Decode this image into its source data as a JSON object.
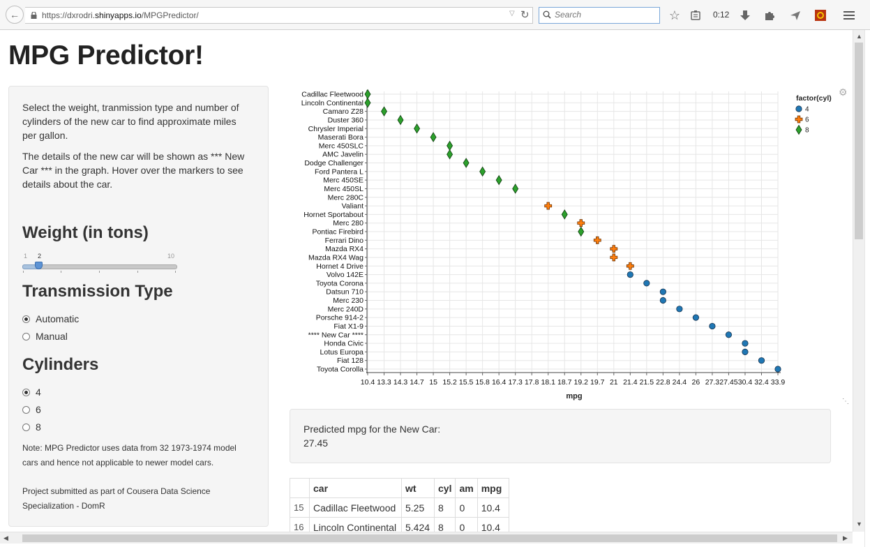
{
  "browser": {
    "url_prefix": "https://dxrodri.",
    "url_host": "shinyapps.io",
    "url_path": "/MPGPredictor/",
    "search_placeholder": "Search",
    "timer": "0:12"
  },
  "page": {
    "title": "MPG Predictor!",
    "intro_1": "Select the weight, tranmission type and number of cylinders of the new car to find approximate miles per gallon.",
    "intro_2": "The details of the new car will be shown as *** New Car *** in the graph. Hover over the markers to see details about the car.",
    "weight": {
      "heading": "Weight (in tons)",
      "min": "1",
      "max": "10",
      "value": "2",
      "fraction": 0.111
    },
    "transmission": {
      "heading": "Transmission Type",
      "options": [
        "Automatic",
        "Manual"
      ],
      "selected": "Automatic"
    },
    "cylinders": {
      "heading": "Cylinders",
      "options": [
        "4",
        "6",
        "8"
      ],
      "selected": "4"
    },
    "note": "Note: MPG Predictor uses data from 32 1973-1974 model cars and hence not applicable to newer model cars.",
    "credit": "Project submitted as part of Cousera Data Science Specialization - DomR",
    "prediction_label": "Predicted mpg for the New Car:",
    "prediction_value": "27.45"
  },
  "chart_data": {
    "type": "scatter",
    "xlabel": "mpg",
    "legend_title": "factor(cyl)",
    "legend_position": "top-right",
    "grid": true,
    "x_ticks": [
      "10.4",
      "13.3",
      "14.3",
      "14.7",
      "15",
      "15.2",
      "15.5",
      "15.8",
      "16.4",
      "17.3",
      "17.8",
      "18.1",
      "18.7",
      "19.2",
      "19.7",
      "21",
      "21.4",
      "21.5",
      "22.8",
      "24.4",
      "26",
      "27.3",
      "27.45",
      "30.4",
      "32.4",
      "33.9"
    ],
    "categories": [
      "Cadillac Fleetwood",
      "Lincoln Continental",
      "Camaro Z28",
      "Duster 360",
      "Chrysler Imperial",
      "Maserati Bora",
      "Merc 450SLC",
      "AMC Javelin",
      "Dodge Challenger",
      "Ford Pantera L",
      "Merc 450SE",
      "Merc 450SL",
      "Merc 280C",
      "Valiant",
      "Hornet Sportabout",
      "Merc 280",
      "Pontiac Firebird",
      "Ferrari Dino",
      "Mazda RX4",
      "Mazda RX4 Wag",
      "Hornet 4 Drive",
      "Volvo 142E",
      "Toyota Corona",
      "Datsun 710",
      "Merc 230",
      "Merc 240D",
      "Porsche 914-2",
      "Fiat X1-9",
      "**** New Car ****",
      "Honda Civic",
      "Lotus Europa",
      "Fiat 128",
      "Toyota Corolla"
    ],
    "series": [
      {
        "name": "4",
        "color": "#1f77b4",
        "marker": "circle",
        "points": [
          [
            "Volvo 142E",
            "21.4"
          ],
          [
            "Toyota Corona",
            "21.5"
          ],
          [
            "Datsun 710",
            "22.8"
          ],
          [
            "Merc 230",
            "22.8"
          ],
          [
            "Merc 240D",
            "24.4"
          ],
          [
            "Porsche 914-2",
            "26"
          ],
          [
            "Fiat X1-9",
            "27.3"
          ],
          [
            "**** New Car ****",
            "27.45"
          ],
          [
            "Honda Civic",
            "30.4"
          ],
          [
            "Lotus Europa",
            "30.4"
          ],
          [
            "Fiat 128",
            "32.4"
          ],
          [
            "Toyota Corolla",
            "33.9"
          ]
        ]
      },
      {
        "name": "6",
        "color": "#ff7f0e",
        "marker": "cross",
        "points": [
          [
            "Valiant",
            "18.1"
          ],
          [
            "Merc 280",
            "19.2"
          ],
          [
            "Ferrari Dino",
            "19.7"
          ],
          [
            "Mazda RX4",
            "21"
          ],
          [
            "Mazda RX4 Wag",
            "21"
          ],
          [
            "Hornet 4 Drive",
            "21.4"
          ]
        ]
      },
      {
        "name": "8",
        "color": "#2ca02c",
        "marker": "diamond",
        "points": [
          [
            "Cadillac Fleetwood",
            "10.4"
          ],
          [
            "Lincoln Continental",
            "10.4"
          ],
          [
            "Camaro Z28",
            "13.3"
          ],
          [
            "Duster 360",
            "14.3"
          ],
          [
            "Chrysler Imperial",
            "14.7"
          ],
          [
            "Maserati Bora",
            "15"
          ],
          [
            "Merc 450SLC",
            "15.2"
          ],
          [
            "AMC Javelin",
            "15.2"
          ],
          [
            "Dodge Challenger",
            "15.5"
          ],
          [
            "Ford Pantera L",
            "15.8"
          ],
          [
            "Merc 450SE",
            "16.4"
          ],
          [
            "Merc 450SL",
            "17.3"
          ],
          [
            "Hornet Sportabout",
            "18.7"
          ],
          [
            "Pontiac Firebird",
            "19.2"
          ]
        ]
      }
    ]
  },
  "table": {
    "columns": [
      "",
      "car",
      "wt",
      "cyl",
      "am",
      "mpg"
    ],
    "rows": [
      [
        "15",
        "Cadillac Fleetwood",
        "5.25",
        "8",
        "0",
        "10.4"
      ],
      [
        "16",
        "Lincoln Continental",
        "5.424",
        "8",
        "0",
        "10.4"
      ]
    ]
  }
}
